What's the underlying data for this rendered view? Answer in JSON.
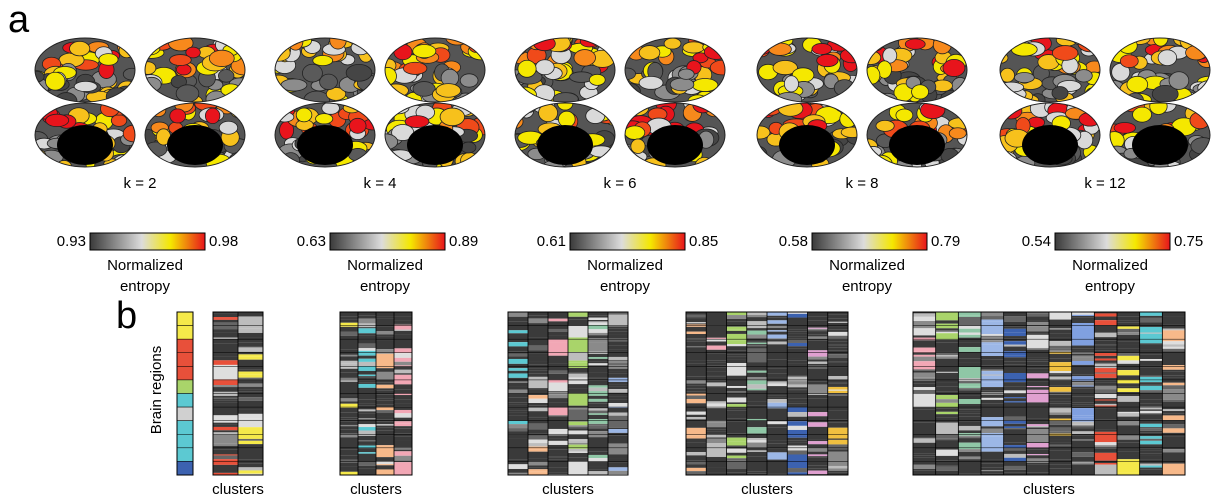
{
  "panel_a": {
    "label": "a",
    "maps": [
      {
        "title": "k = 2",
        "colorbar": {
          "min": "0.93",
          "max": "0.98",
          "label_lines": [
            "Normalized",
            "entropy"
          ]
        }
      },
      {
        "title": "k = 4",
        "colorbar": {
          "min": "0.63",
          "max": "0.89",
          "label_lines": [
            "Normalized",
            "entropy"
          ]
        }
      },
      {
        "title": "k = 6",
        "colorbar": {
          "min": "0.61",
          "max": "0.85",
          "label_lines": [
            "Normalized",
            "entropy"
          ]
        }
      },
      {
        "title": "k = 8",
        "colorbar": {
          "min": "0.58",
          "max": "0.79",
          "label_lines": [
            "Normalized",
            "entropy"
          ]
        }
      },
      {
        "title": "k = 12",
        "colorbar": {
          "min": "0.54",
          "max": "0.75",
          "label_lines": [
            "Normalized",
            "entropy"
          ]
        }
      }
    ]
  },
  "panel_b": {
    "label": "b",
    "y_label": "Brain regions",
    "matrices": [
      {
        "x_label": "clusters"
      },
      {
        "x_label": "clusters"
      },
      {
        "x_label": "clusters"
      },
      {
        "x_label": "clusters"
      },
      {
        "x_label": "clusters"
      }
    ]
  }
}
